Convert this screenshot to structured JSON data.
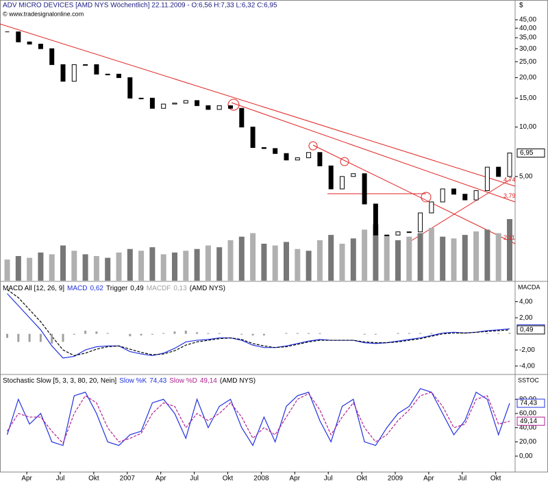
{
  "chart_data": [
    {
      "type": "candlestick",
      "title": "ADV MICRO DEVICES [AMD NYS  Wöchentlich] 22.11.2009 - O:6,56 H:7,33 L:6,32 C:6,95",
      "subtitle": "© www.tradesignalonline.com",
      "unit": "$",
      "log_scale": true,
      "ylim": [
        1.16,
        55
      ],
      "yticks": [
        {
          "value": 5,
          "label": "5,00"
        },
        {
          "value": 10,
          "label": "10,00"
        },
        {
          "value": 15,
          "label": "15,00"
        },
        {
          "value": 20,
          "label": "20,00"
        },
        {
          "value": 25,
          "label": "25,00"
        },
        {
          "value": 30,
          "label": "30,00"
        },
        {
          "value": 35,
          "label": "35,00"
        },
        {
          "value": 40,
          "label": "40,00"
        },
        {
          "value": 45,
          "label": "45,00"
        }
      ],
      "values": [
        38,
        33,
        32,
        30,
        24,
        19,
        24,
        24,
        21,
        21,
        20,
        15,
        15,
        13,
        13.8,
        14,
        14.5,
        13.5,
        12.8,
        13.5,
        13,
        10,
        7.5,
        7.4,
        6.9,
        6.3,
        6.5,
        7,
        5.8,
        4.2,
        5.0,
        5.2,
        3.4,
        2.2,
        2.2,
        2.3,
        2.3,
        3.0,
        3.5,
        4.2,
        3.9,
        3.6,
        4.1,
        5.7,
        5.0,
        6.95
      ],
      "last_label": "6,95",
      "volume": [
        120,
        140,
        130,
        160,
        150,
        200,
        170,
        150,
        140,
        130,
        160,
        180,
        170,
        190,
        150,
        160,
        170,
        180,
        200,
        190,
        230,
        250,
        270,
        210,
        200,
        220,
        180,
        170,
        230,
        260,
        210,
        240,
        290,
        320,
        260,
        230,
        250,
        270,
        300,
        250,
        240,
        260,
        280,
        290,
        270,
        350
      ],
      "annotations": [
        {
          "value": 4.74,
          "label": "4,74"
        },
        {
          "value": 3.79,
          "label": "3,79"
        },
        {
          "value": 2.11,
          "label": "2,11"
        }
      ],
      "color": "#e02020"
    },
    {
      "type": "line",
      "title": "MACD All [12, 26, 9]",
      "suffix": "(AMD NYS)",
      "axis_title": "MACDA",
      "ylim": [
        -4.96,
        6.35
      ],
      "yticks": [
        {
          "value": -4,
          "label": "-4,00"
        },
        {
          "value": -2,
          "label": "-2,00"
        },
        {
          "value": 2,
          "label": "2,00"
        },
        {
          "value": 4,
          "label": "4,00"
        }
      ],
      "series": [
        {
          "name": "MACD",
          "color": "#2030e0",
          "last_label": "0,62",
          "values": [
            5.0,
            3.5,
            2.0,
            0.5,
            -1.5,
            -3.0,
            -2.8,
            -2.0,
            -1.6,
            -1.5,
            -1.5,
            -2.2,
            -2.5,
            -2.7,
            -2.4,
            -1.8,
            -1.0,
            -0.8,
            -0.7,
            -0.5,
            -0.5,
            -0.8,
            -1.4,
            -1.7,
            -1.7,
            -1.5,
            -1.2,
            -0.9,
            -0.7,
            -0.8,
            -0.8,
            -0.8,
            -1.1,
            -1.2,
            -1.1,
            -0.9,
            -0.7,
            -0.5,
            -0.2,
            0.1,
            0.2,
            0.1,
            0.2,
            0.4,
            0.5,
            0.62
          ]
        },
        {
          "name": "Trigger",
          "color": "#000000",
          "last_label": "0,49",
          "values": [
            5.5,
            4.5,
            3.0,
            1.5,
            -0.3,
            -2.0,
            -2.7,
            -2.4,
            -1.9,
            -1.6,
            -1.5,
            -1.9,
            -2.3,
            -2.6,
            -2.5,
            -2.1,
            -1.4,
            -1.0,
            -0.8,
            -0.6,
            -0.5,
            -0.7,
            -1.2,
            -1.5,
            -1.7,
            -1.6,
            -1.3,
            -1.0,
            -0.8,
            -0.8,
            -0.8,
            -0.8,
            -1.0,
            -1.1,
            -1.1,
            -1.0,
            -0.8,
            -0.6,
            -0.3,
            0.0,
            0.1,
            0.1,
            0.2,
            0.3,
            0.4,
            0.49
          ]
        },
        {
          "name": "MACDF",
          "color": "#a0a0a0",
          "last_label": "0,13",
          "values": [
            -0.5,
            -1.0,
            -1.0,
            -1.0,
            -1.2,
            -1.0,
            -0.1,
            0.4,
            0.3,
            0.1,
            0.0,
            -0.3,
            -0.2,
            -0.1,
            0.1,
            0.3,
            0.4,
            0.2,
            0.1,
            0.1,
            0.0,
            -0.1,
            -0.2,
            -0.2,
            0.0,
            0.1,
            0.1,
            0.1,
            0.1,
            0.0,
            0.0,
            0.0,
            -0.1,
            -0.1,
            0.0,
            0.1,
            0.1,
            0.1,
            0.1,
            0.1,
            0.1,
            0.0,
            0.0,
            0.1,
            0.1,
            0.13
          ]
        }
      ]
    },
    {
      "type": "line",
      "title": "Stochastic Slow [5, 3, 3, 80, 20, Nein]",
      "suffix": "(AMD NYS)",
      "axis_title": "SSTOC",
      "ylim": [
        -22,
        114
      ],
      "yticks": [
        {
          "value": 0,
          "label": "0,00"
        },
        {
          "value": 20,
          "label": "20,00"
        },
        {
          "value": 40,
          "label": "40,00"
        },
        {
          "value": 60,
          "label": "60,00"
        },
        {
          "value": 80,
          "label": "80,00"
        }
      ],
      "series": [
        {
          "name": "Slow %K",
          "color": "#2030e0",
          "last_label": "74,43",
          "values": [
            30,
            80,
            45,
            60,
            20,
            15,
            85,
            90,
            60,
            20,
            15,
            30,
            35,
            75,
            80,
            60,
            25,
            80,
            40,
            70,
            80,
            40,
            15,
            55,
            20,
            70,
            85,
            90,
            50,
            20,
            70,
            80,
            20,
            15,
            40,
            60,
            70,
            95,
            90,
            60,
            30,
            50,
            90,
            80,
            30,
            74.43
          ]
        },
        {
          "name": "Slow %D",
          "color": "#b02090",
          "last_label": "49,14",
          "values": [
            35,
            60,
            55,
            55,
            35,
            18,
            60,
            85,
            75,
            40,
            20,
            25,
            32,
            60,
            75,
            70,
            40,
            60,
            50,
            60,
            75,
            55,
            25,
            40,
            30,
            55,
            80,
            88,
            65,
            30,
            55,
            75,
            40,
            20,
            30,
            50,
            65,
            85,
            90,
            70,
            40,
            45,
            80,
            85,
            45,
            49.14
          ]
        }
      ],
      "categories": [
        null,
        null,
        "Apr",
        null,
        null,
        "Jul",
        null,
        null,
        "Okt",
        null,
        null,
        "2007",
        null,
        null,
        "Apr",
        null,
        null,
        "Jul",
        null,
        null,
        "Okt",
        null,
        null,
        "2008",
        null,
        null,
        "Apr",
        null,
        null,
        "Jul",
        null,
        null,
        "Okt",
        null,
        null,
        "2009",
        null,
        null,
        "Apr",
        null,
        null,
        "Jul",
        null,
        null,
        "Okt",
        null
      ]
    }
  ]
}
